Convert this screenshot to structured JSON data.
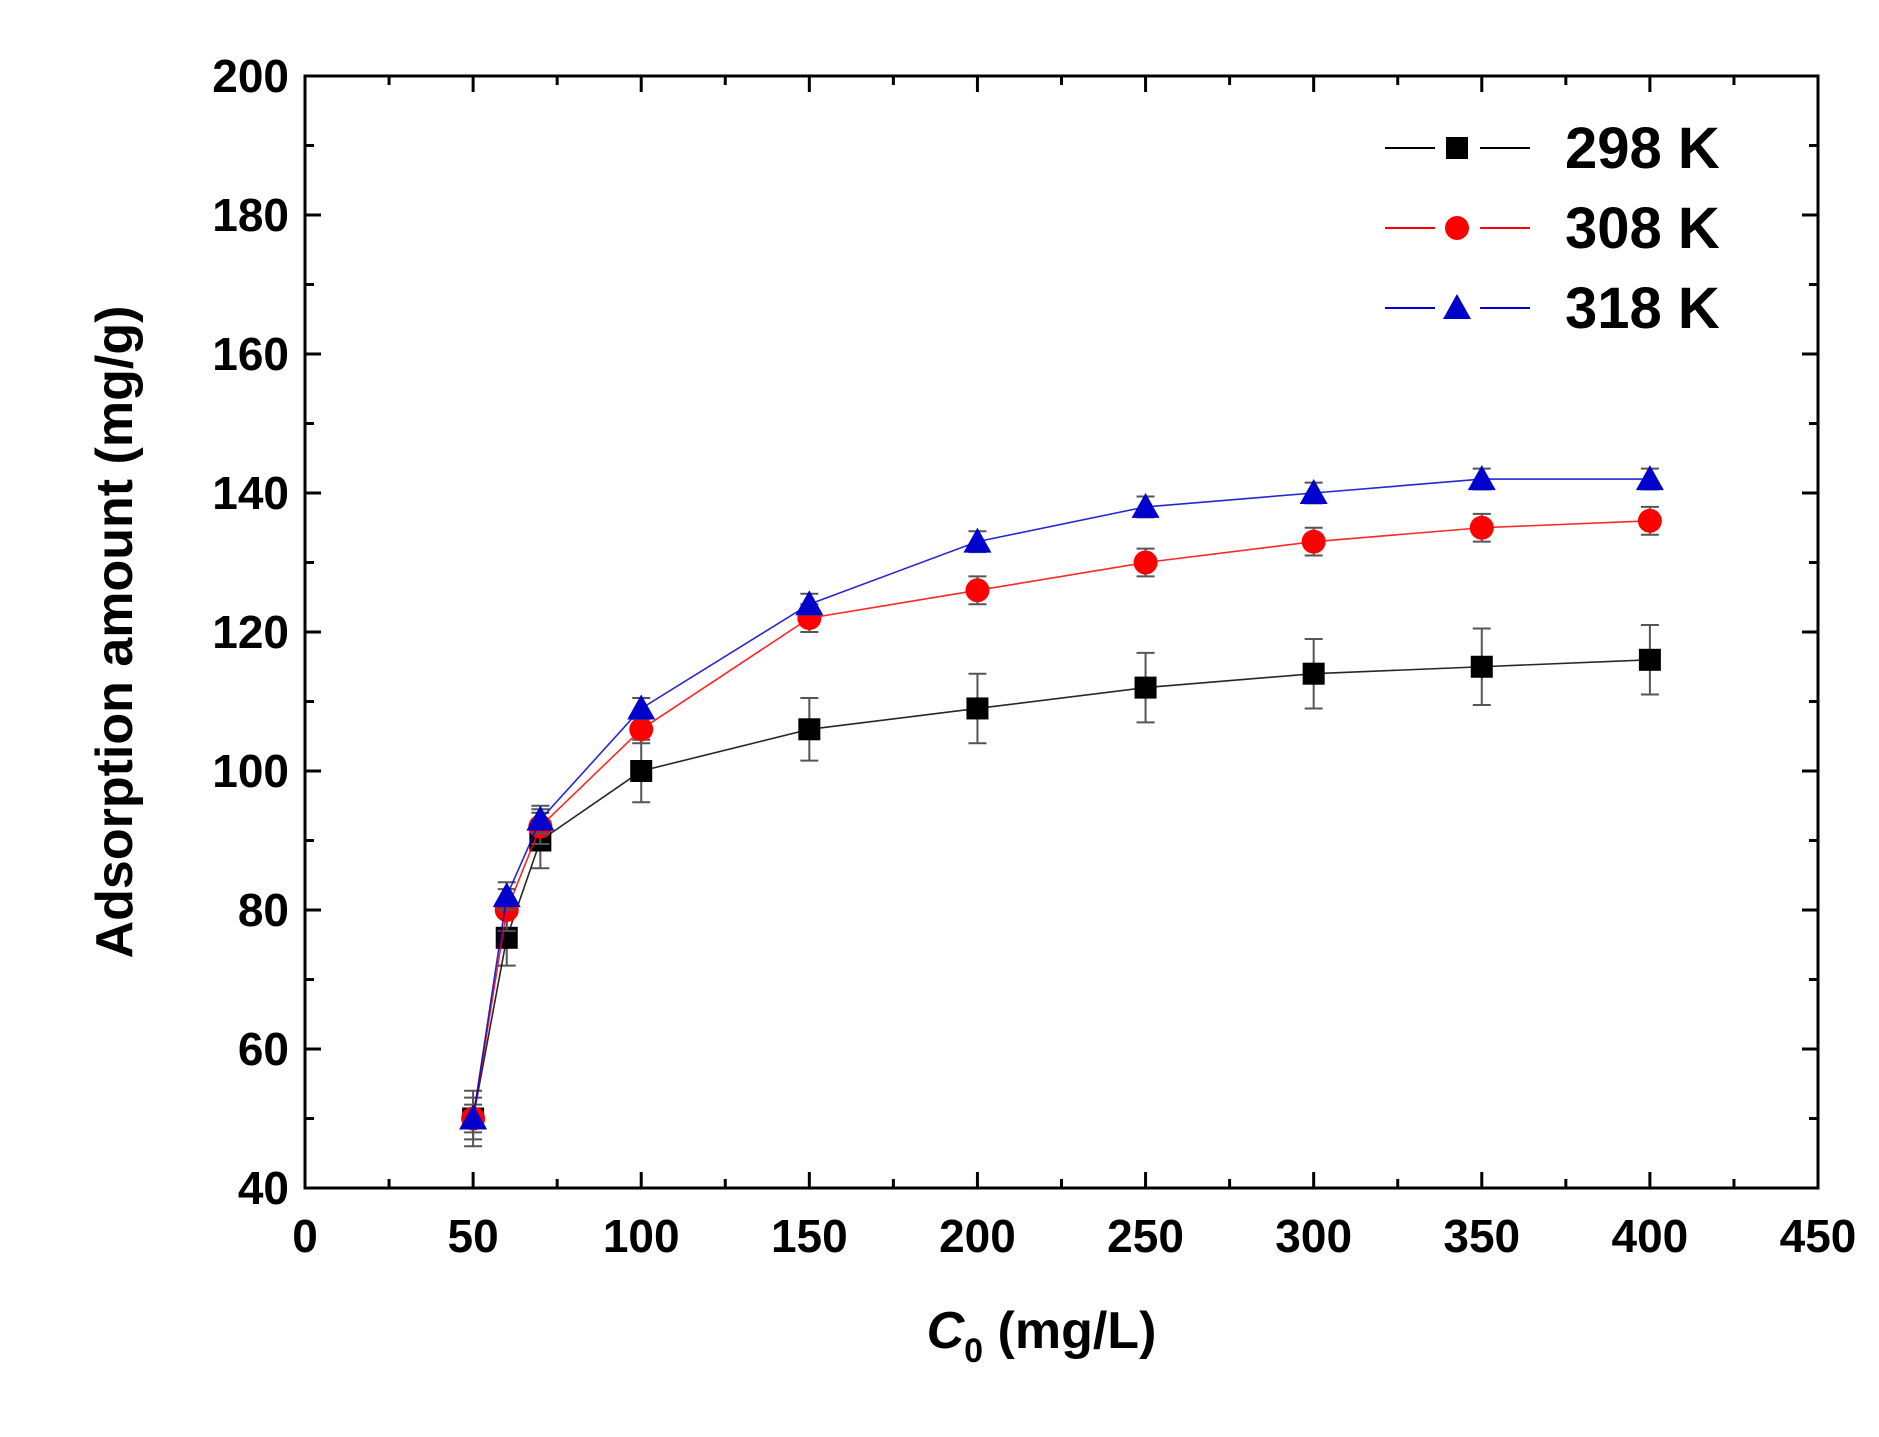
{
  "chart_data": {
    "type": "line",
    "title": "",
    "xlabel_main": "C",
    "xlabel_sub": "0",
    "xlabel_rest": " (mg/L)",
    "ylabel": "Adsorption amount (mg/g)",
    "xlim": [
      0,
      450
    ],
    "ylim": [
      40,
      200
    ],
    "xticks": [
      0,
      50,
      100,
      150,
      200,
      250,
      300,
      350,
      400,
      450
    ],
    "yticks": [
      40,
      60,
      80,
      100,
      120,
      140,
      160,
      180,
      200
    ],
    "x": [
      50,
      60,
      70,
      100,
      150,
      200,
      250,
      300,
      350,
      400
    ],
    "grid": false,
    "legend_position": "top-right",
    "series": [
      {
        "name": "298 K",
        "color": "#000000",
        "marker": "square",
        "values": [
          50,
          76,
          90,
          100,
          106,
          109,
          112,
          114,
          115,
          116
        ],
        "errors": [
          4,
          4,
          4,
          4.5,
          4.5,
          5,
          5,
          5,
          5.5,
          5
        ]
      },
      {
        "name": "308 K",
        "color": "#ff0000",
        "marker": "circle",
        "values": [
          50,
          80,
          92,
          106,
          122,
          126,
          130,
          133,
          135,
          136
        ],
        "errors": [
          3,
          3,
          2.5,
          2,
          2,
          2,
          2,
          2,
          2,
          2
        ]
      },
      {
        "name": "318 K",
        "color": "#0000cc",
        "marker": "triangle",
        "values": [
          50,
          82,
          93,
          109,
          124,
          133,
          138,
          140,
          142,
          142
        ],
        "errors": [
          2,
          2,
          2,
          1.5,
          1.5,
          1.5,
          1.5,
          1.5,
          1.5,
          1.5
        ]
      }
    ]
  }
}
